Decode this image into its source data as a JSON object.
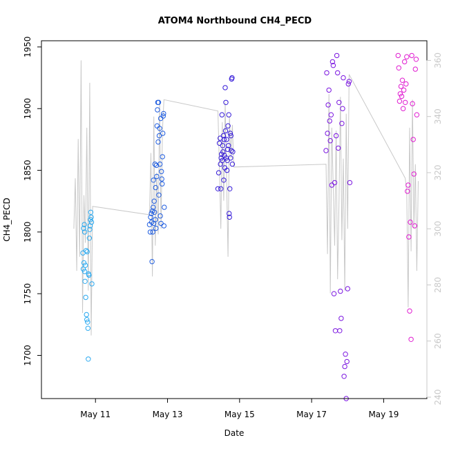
{
  "chart_data": {
    "type": "scatter",
    "title": "ATOM4 Northbound CH4_PECD",
    "xlabel": "Date",
    "ylabel": "CH4_PECD",
    "x_unit": "days since May 9 00:00",
    "xlim": [
      9.5,
      20.2
    ],
    "ylim": [
      1665,
      1955
    ],
    "y2lim": [
      239.5,
      367
    ],
    "x_ticks": [
      {
        "value": 11,
        "label": "May 11"
      },
      {
        "value": 13,
        "label": "May 13"
      },
      {
        "value": 15,
        "label": "May 15"
      },
      {
        "value": 17,
        "label": "May 17"
      },
      {
        "value": 19,
        "label": "May 19"
      }
    ],
    "y_ticks": [
      1700,
      1750,
      1800,
      1850,
      1900,
      1950
    ],
    "y2_ticks": [
      240,
      260,
      280,
      300,
      320,
      340,
      360
    ],
    "grid": false,
    "legend": "none",
    "colors": {
      "flight1": "#2aa9f0",
      "flight2": "#1f5de0",
      "flight3": "#3318d8",
      "flight4": "#7a14e0",
      "flight5": "#e01ad0",
      "secondary_line": "#c8c8c8",
      "right_axis": "#c8c8c8"
    },
    "series": [
      {
        "color": "#2aa9f0",
        "x": [
          10.65,
          10.66,
          10.67,
          10.68,
          10.69,
          10.7,
          10.7,
          10.71,
          10.72,
          10.73,
          10.74,
          10.75,
          10.76,
          10.77,
          10.78,
          10.79,
          10.8,
          10.81,
          10.82,
          10.83,
          10.84,
          10.85,
          10.86,
          10.87,
          10.88,
          10.89,
          10.9
        ],
        "y": [
          1783,
          1770,
          1803,
          1775,
          1806,
          1768,
          1800,
          1760,
          1773,
          1747,
          1785,
          1733,
          1729,
          1784,
          1727,
          1722,
          1697,
          1766,
          1765,
          1795,
          1802,
          1805,
          1810,
          1816,
          1812,
          1808,
          1758
        ]
      },
      {
        "color": "#1f5de0",
        "x": [
          12.5,
          12.52,
          12.53,
          12.55,
          12.56,
          12.57,
          12.58,
          12.59,
          12.6,
          12.61,
          12.62,
          12.63,
          12.64,
          12.65,
          12.66,
          12.67,
          12.68,
          12.69,
          12.7,
          12.71,
          12.72,
          12.73,
          12.74,
          12.75,
          12.76,
          12.77,
          12.78,
          12.79,
          12.8,
          12.81,
          12.82,
          12.83,
          12.84,
          12.85,
          12.86,
          12.87,
          12.88,
          12.89,
          12.9,
          12.91
        ],
        "y": [
          1806,
          1800,
          1812,
          1815,
          1808,
          1776,
          1817,
          1800,
          1820,
          1842,
          1807,
          1825,
          1816,
          1855,
          1810,
          1836,
          1803,
          1854,
          1845,
          1886,
          1899,
          1905,
          1873,
          1905,
          1830,
          1878,
          1884,
          1855,
          1813,
          1892,
          1807,
          1849,
          1843,
          1839,
          1861,
          1880,
          1894,
          1896,
          1805,
          1820
        ]
      },
      {
        "color": "#3318d8",
        "x": [
          14.4,
          14.42,
          14.44,
          14.46,
          14.47,
          14.48,
          14.49,
          14.5,
          14.51,
          14.52,
          14.53,
          14.54,
          14.55,
          14.56,
          14.57,
          14.58,
          14.59,
          14.6,
          14.61,
          14.62,
          14.63,
          14.64,
          14.65,
          14.66,
          14.67,
          14.68,
          14.69,
          14.7,
          14.71,
          14.72,
          14.73,
          14.74,
          14.75,
          14.76,
          14.77,
          14.78,
          14.79,
          14.8,
          14.81
        ],
        "y": [
          1835,
          1848,
          1872,
          1876,
          1855,
          1835,
          1860,
          1863,
          1895,
          1858,
          1870,
          1865,
          1878,
          1842,
          1875,
          1862,
          1852,
          1917,
          1882,
          1905,
          1860,
          1875,
          1850,
          1858,
          1867,
          1886,
          1870,
          1895,
          1815,
          1812,
          1835,
          1880,
          1860,
          1878,
          1866,
          1924,
          1925,
          1855,
          1865
        ]
      },
      {
        "color": "#7a14e0",
        "x": [
          17.4,
          17.42,
          17.44,
          17.46,
          17.48,
          17.5,
          17.52,
          17.54,
          17.56,
          17.58,
          17.6,
          17.62,
          17.64,
          17.66,
          17.68,
          17.7,
          17.72,
          17.74,
          17.76,
          17.78,
          17.8,
          17.82,
          17.84,
          17.86,
          17.88,
          17.9,
          17.92,
          17.94,
          17.96,
          17.98,
          18.0,
          18.02,
          18.04,
          18.06
        ],
        "y": [
          1866,
          1929,
          1880,
          1903,
          1915,
          1890,
          1874,
          1895,
          1838,
          1938,
          1935,
          1750,
          1840,
          1720,
          1878,
          1943,
          1929,
          1868,
          1905,
          1720,
          1752,
          1730,
          1888,
          1900,
          1925,
          1683,
          1691,
          1701,
          1665,
          1695,
          1754,
          1920,
          1922,
          1840
        ]
      },
      {
        "color": "#e01ad0",
        "x": [
          19.4,
          19.42,
          19.44,
          19.46,
          19.48,
          19.5,
          19.52,
          19.54,
          19.56,
          19.58,
          19.6,
          19.62,
          19.64,
          19.66,
          19.68,
          19.7,
          19.72,
          19.74,
          19.76,
          19.78,
          19.8,
          19.82,
          19.84,
          19.86,
          19.88,
          19.9,
          19.92
        ],
        "y": [
          1943,
          1933,
          1906,
          1912,
          1918,
          1910,
          1923,
          1900,
          1915,
          1938,
          1905,
          1920,
          1942,
          1833,
          1838,
          1796,
          1736,
          1808,
          1713,
          1943,
          1904,
          1875,
          1847,
          1805,
          1932,
          1940,
          1895
        ]
      }
    ],
    "secondary_series": {
      "x": [
        10.4,
        10.44,
        10.48,
        10.52,
        10.56,
        10.6,
        10.64,
        10.68,
        10.72,
        10.76,
        10.8,
        10.84,
        10.88,
        10.92,
        12.5,
        12.54,
        12.58,
        12.62,
        12.66,
        12.7,
        12.74,
        12.78,
        12.82,
        12.86,
        12.9,
        14.4,
        14.44,
        14.48,
        14.52,
        14.56,
        14.6,
        14.64,
        14.68,
        14.72,
        14.76,
        14.8,
        14.84,
        17.4,
        17.44,
        17.48,
        17.52,
        17.56,
        17.6,
        17.64,
        17.68,
        17.72,
        17.76,
        17.8,
        17.84,
        17.88,
        17.92,
        17.96,
        18.0,
        18.04,
        19.6,
        19.64,
        19.68,
        19.72,
        19.76,
        19.8,
        19.84,
        19.88,
        19.92,
        19.96
      ],
      "y": [
        300,
        318,
        285,
        332,
        290,
        360,
        270,
        312,
        295,
        336,
        278,
        352,
        262,
        308,
        305,
        327,
        283,
        340,
        294,
        320,
        298,
        346,
        300,
        335,
        346,
        342,
        322,
        300,
        338,
        310,
        345,
        318,
        290,
        340,
        325,
        337,
        322,
        323,
        291,
        348,
        277,
        336,
        315,
        294,
        335,
        282,
        310,
        347,
        296,
        325,
        278,
        341,
        300,
        355,
        318,
        313,
        272,
        336,
        292,
        346,
        300,
        323,
        285,
        317
      ]
    }
  }
}
